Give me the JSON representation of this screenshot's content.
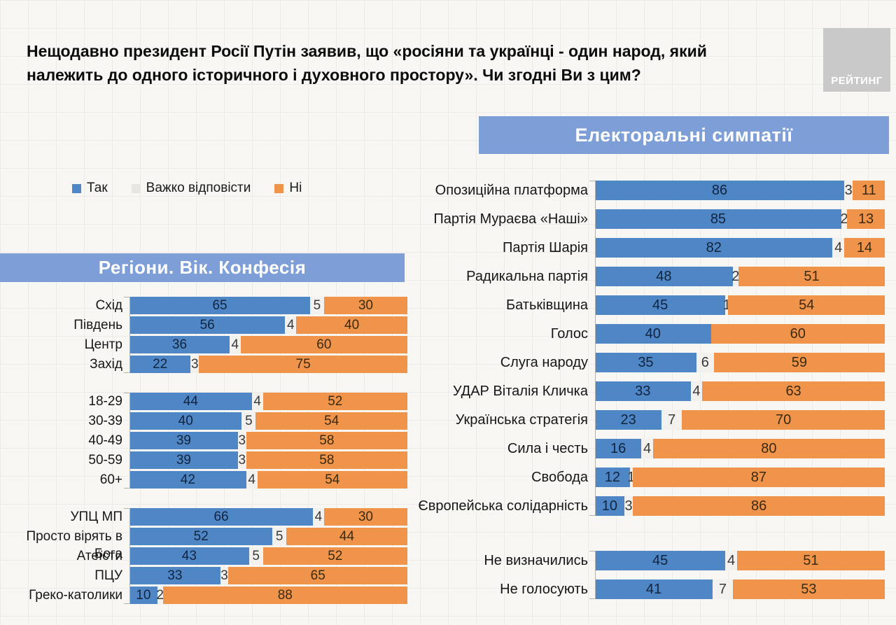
{
  "header": {
    "title_lines": [
      "Нещодавно президент Росії Путін заявив, що «росіяни та українці - один народ, який",
      "належить до одного історичного і духовного простору». Чи згодні Ви з цим?"
    ],
    "logo": "РЕЙТИНГ"
  },
  "legend": [
    {
      "label": "Так",
      "color": "#4f86c6"
    },
    {
      "label": "Важко відповісти",
      "color": "#e8e6e2"
    },
    {
      "label": "Ні",
      "color": "#f0944b"
    }
  ],
  "colors": {
    "series_fill": [
      "#4f86c6",
      "#f3f1ee",
      "#f0944b"
    ],
    "value_text": [
      "#10243e",
      "#3a3a3a",
      "#3a2a10"
    ],
    "banner_bg": "#7d9ed7",
    "banner_text": "#ffffff",
    "logo_bg": "#c9c9c9",
    "logo_text": "#ffffff"
  },
  "chart_data": [
    {
      "type": "bar",
      "orientation": "horizontal",
      "stacked": true,
      "unit": "%",
      "axis_range": [
        0,
        100
      ],
      "title": "Регіони. Вік. Конфесія",
      "series_names": [
        "Так",
        "Важко відповісти",
        "Ні"
      ],
      "groups": [
        {
          "name": "regions",
          "rows": [
            {
              "label": "Схід",
              "values": [
                65,
                5,
                30
              ]
            },
            {
              "label": "Південь",
              "values": [
                56,
                4,
                40
              ]
            },
            {
              "label": "Центр",
              "values": [
                36,
                4,
                60
              ]
            },
            {
              "label": "Захід",
              "values": [
                22,
                3,
                75
              ]
            }
          ]
        },
        {
          "name": "age",
          "rows": [
            {
              "label": "18-29",
              "values": [
                44,
                4,
                52
              ]
            },
            {
              "label": "30-39",
              "values": [
                40,
                5,
                54
              ]
            },
            {
              "label": "40-49",
              "values": [
                39,
                3,
                58
              ]
            },
            {
              "label": "50-59",
              "values": [
                39,
                3,
                58
              ]
            },
            {
              "label": "60+",
              "values": [
                42,
                4,
                54
              ]
            }
          ]
        },
        {
          "name": "confession",
          "rows": [
            {
              "label": "УПЦ МП",
              "values": [
                66,
                4,
                30
              ]
            },
            {
              "label": "Просто вірять в Бога",
              "values": [
                52,
                5,
                44
              ]
            },
            {
              "label": "Атеїсти",
              "values": [
                43,
                5,
                52
              ]
            },
            {
              "label": "ПЦУ",
              "values": [
                33,
                3,
                65
              ]
            },
            {
              "label": "Греко-католики",
              "values": [
                10,
                2,
                88
              ]
            }
          ]
        }
      ]
    },
    {
      "type": "bar",
      "orientation": "horizontal",
      "stacked": true,
      "unit": "%",
      "axis_range": [
        0,
        100
      ],
      "title": "Електоральні симпатії",
      "series_names": [
        "Так",
        "Важко відповісти",
        "Ні"
      ],
      "groups": [
        {
          "name": "parties",
          "rows": [
            {
              "label": "Опозиційна платформа",
              "values": [
                86,
                3,
                11
              ]
            },
            {
              "label": "Партія Мураєва «Наші»",
              "values": [
                85,
                2,
                13
              ]
            },
            {
              "label": "Партія Шарія",
              "values": [
                82,
                4,
                14
              ]
            },
            {
              "label": "Радикальна партія",
              "values": [
                48,
                2,
                51
              ]
            },
            {
              "label": "Батьківщина",
              "values": [
                45,
                1,
                54
              ]
            },
            {
              "label": "Голос",
              "values": [
                40,
                0,
                60
              ]
            },
            {
              "label": "Слуга народу",
              "values": [
                35,
                6,
                59
              ]
            },
            {
              "label": "УДАР Віталія Кличка",
              "values": [
                33,
                4,
                63
              ]
            },
            {
              "label": "Українська стратегія",
              "values": [
                23,
                7,
                70
              ]
            },
            {
              "label": "Сила і честь",
              "values": [
                16,
                4,
                80
              ]
            },
            {
              "label": "Свобода",
              "values": [
                12,
                1,
                87
              ]
            },
            {
              "label": "Європейська солідарність",
              "values": [
                10,
                3,
                86
              ]
            }
          ]
        },
        {
          "name": "non-voters",
          "rows": [
            {
              "label": "Не визначились",
              "values": [
                45,
                4,
                51
              ]
            },
            {
              "label": "Не голосують",
              "values": [
                41,
                7,
                53
              ]
            }
          ]
        }
      ]
    }
  ]
}
